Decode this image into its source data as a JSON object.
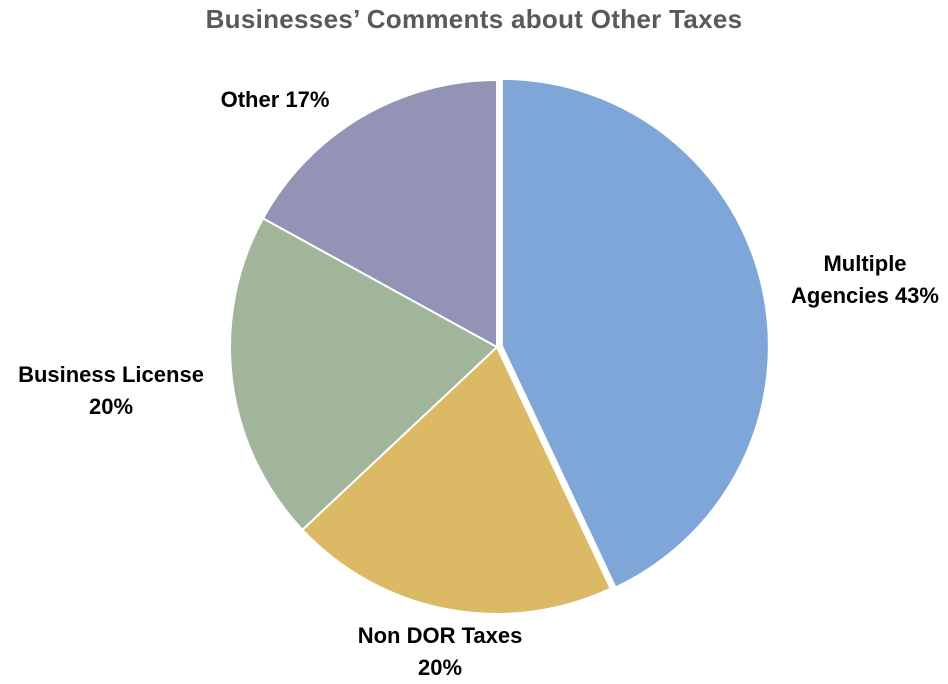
{
  "chart_data": {
    "type": "pie",
    "title": "Businesses’ Comments about Other Taxes",
    "categories": [
      "Multiple Agencies",
      "Non DOR Taxes",
      "Business License",
      "Other"
    ],
    "values": [
      43,
      20,
      20,
      17
    ],
    "unit": "%",
    "start_angle_deg": 0,
    "direction": "clockwise",
    "exploded_slice": "Multiple Agencies",
    "colors": [
      "#7EA6D8",
      "#DCBA65",
      "#A1B59A",
      "#9293B5"
    ],
    "legend": "none",
    "data_labels": [
      {
        "line1": "Multiple",
        "line2": "Agencies 43%"
      },
      {
        "line1": "Non DOR Taxes",
        "line2": "20%"
      },
      {
        "line1": "Business License",
        "line2": "20%"
      },
      {
        "line1": "Other 17%",
        "line2": ""
      }
    ]
  }
}
